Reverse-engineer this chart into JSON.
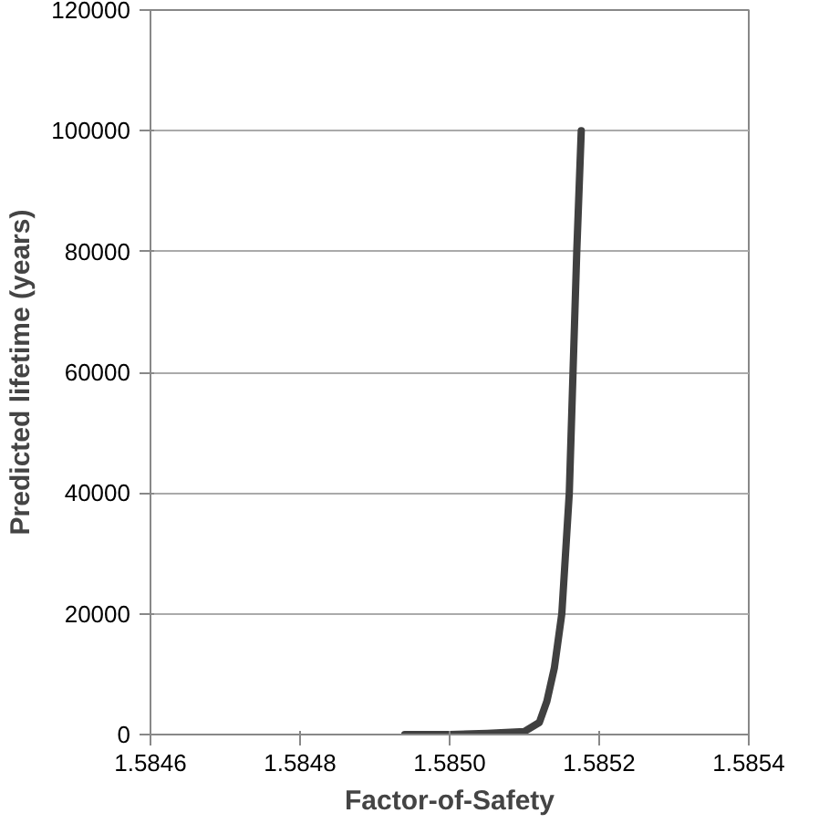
{
  "chart_data": {
    "type": "line",
    "xlabel": "Factor-of-Safety",
    "ylabel": "Predicted lifetime (years)",
    "x": [
      1.58494,
      1.585,
      1.58505,
      1.5851,
      1.58512,
      1.58513,
      1.58514,
      1.58515,
      1.58516,
      1.585165,
      1.58517,
      1.585176
    ],
    "series": [
      {
        "color": "#404040",
        "values": [
          0,
          0,
          200,
          500,
          2000,
          5500,
          11000,
          20000,
          40000,
          60000,
          80000,
          100000
        ]
      }
    ],
    "xlim": [
      1.5846,
      1.5854
    ],
    "xticks": [
      {
        "value": 1.5846,
        "label": "1.5846"
      },
      {
        "value": 1.5848,
        "label": "1.5848"
      },
      {
        "value": 1.585,
        "label": "1.5850"
      },
      {
        "value": 1.5852,
        "label": "1.5852"
      },
      {
        "value": 1.5854,
        "label": "1.5854"
      }
    ],
    "ylim": [
      0,
      120000
    ],
    "yticks": [
      0,
      20000,
      40000,
      60000,
      80000,
      100000,
      120000
    ],
    "grid": "y",
    "marker": "none",
    "line_style": "solid"
  }
}
